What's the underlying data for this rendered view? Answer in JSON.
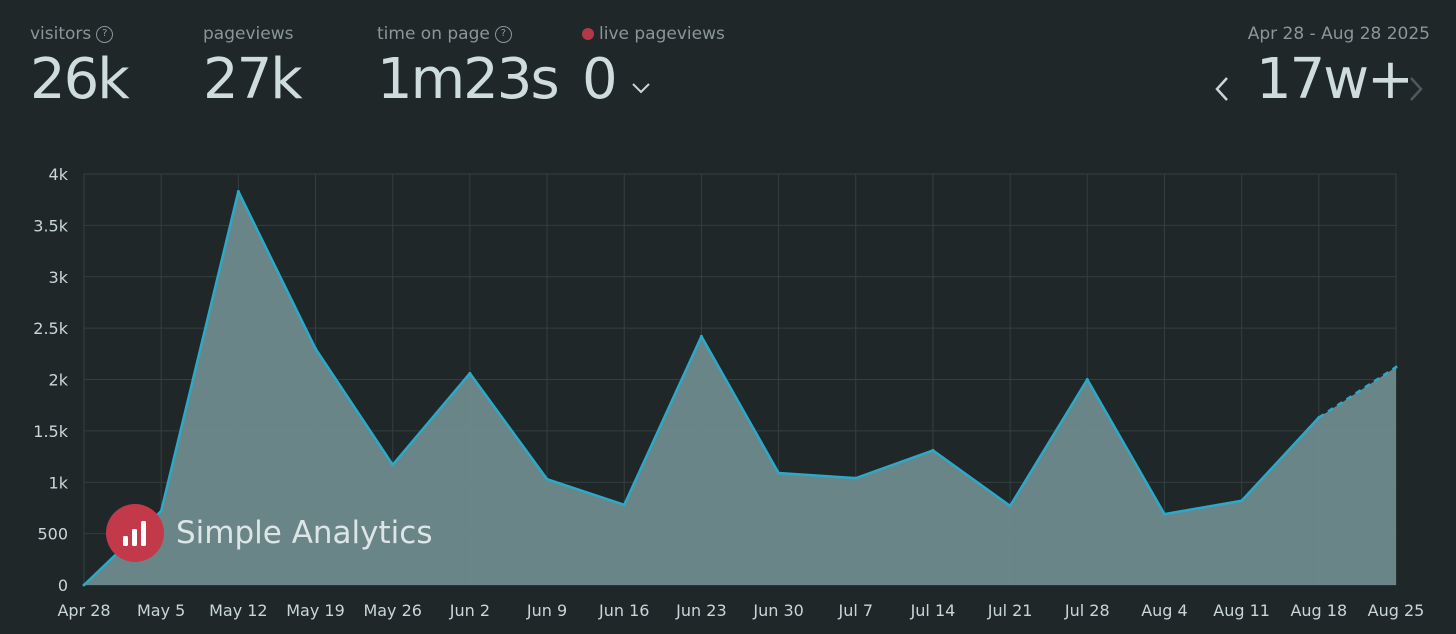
{
  "stats": {
    "visitors": {
      "label": "visitors",
      "value": "26k"
    },
    "pageviews": {
      "label": "pageviews",
      "value": "27k"
    },
    "time_on_page": {
      "label": "time on page",
      "value": "1m23s"
    },
    "live_pageviews": {
      "label": "live pageviews",
      "value": "0"
    }
  },
  "help_glyph": "?",
  "date_range": "Apr 28 - Aug 28 2025",
  "period": "17w+",
  "watermark": {
    "text": "Simple Analytics"
  },
  "colors": {
    "background": "#1f2729",
    "line": "#2ba9c9",
    "fill": "#6e8a8d",
    "grid": "#33403f",
    "live_dot": "#b23a48",
    "logo": "#c23a4a"
  },
  "chart_data": {
    "type": "area",
    "x": [
      "Apr 28",
      "May 5",
      "May 12",
      "May 19",
      "May 26",
      "Jun 2",
      "Jun 9",
      "Jun 16",
      "Jun 23",
      "Jun 30",
      "Jul 7",
      "Jul 14",
      "Jul 21",
      "Jul 28",
      "Aug 4",
      "Aug 11",
      "Aug 18",
      "Aug 25"
    ],
    "series": [
      {
        "values": [
          0,
          720,
          3830,
          2300,
          1170,
          2060,
          1030,
          780,
          2420,
          1090,
          1040,
          1310,
          770,
          2000,
          690,
          820,
          1630,
          2120
        ]
      }
    ],
    "incomplete_from_index": 16,
    "ylim": [
      0,
      4000
    ],
    "yticks": [
      0,
      500,
      1000,
      1500,
      2000,
      2500,
      3000,
      3500,
      4000
    ],
    "ytick_labels": [
      "0",
      "500",
      "1k",
      "1.5k",
      "2k",
      "2.5k",
      "3k",
      "3.5k",
      "4k"
    ],
    "grid": true,
    "legend": "none"
  }
}
